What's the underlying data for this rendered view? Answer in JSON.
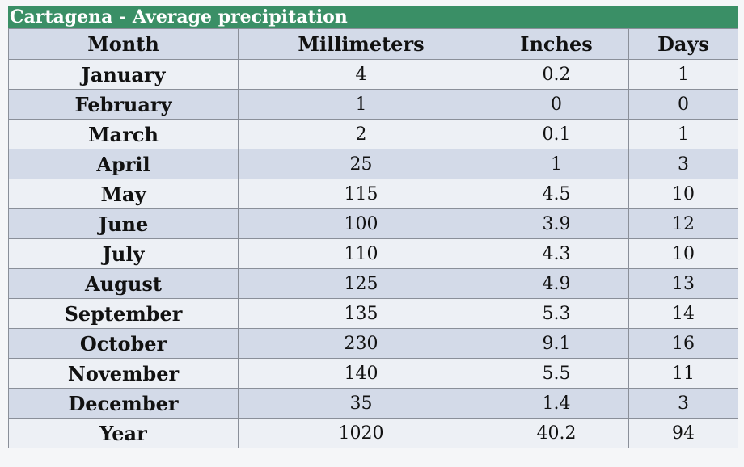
{
  "table": {
    "caption": "Cartagena - Average precipitation",
    "headers": [
      "Month",
      "Millimeters",
      "Inches",
      "Days"
    ],
    "rows": [
      [
        "January",
        "4",
        "0.2",
        "1"
      ],
      [
        "February",
        "1",
        "0",
        "0"
      ],
      [
        "March",
        "2",
        "0.1",
        "1"
      ],
      [
        "April",
        "25",
        "1",
        "3"
      ],
      [
        "May",
        "115",
        "4.5",
        "10"
      ],
      [
        "June",
        "100",
        "3.9",
        "12"
      ],
      [
        "July",
        "110",
        "4.3",
        "10"
      ],
      [
        "August",
        "125",
        "4.9",
        "13"
      ],
      [
        "September",
        "135",
        "5.3",
        "14"
      ],
      [
        "October",
        "230",
        "9.1",
        "16"
      ],
      [
        "November",
        "140",
        "5.5",
        "11"
      ],
      [
        "December",
        "35",
        "1.4",
        "3"
      ],
      [
        "Year",
        "1020",
        "40.2",
        "94"
      ]
    ]
  },
  "colors": {
    "caption_bg": "#3a8f66",
    "row_dark": "#d3dae8",
    "row_light": "#edf0f5"
  }
}
